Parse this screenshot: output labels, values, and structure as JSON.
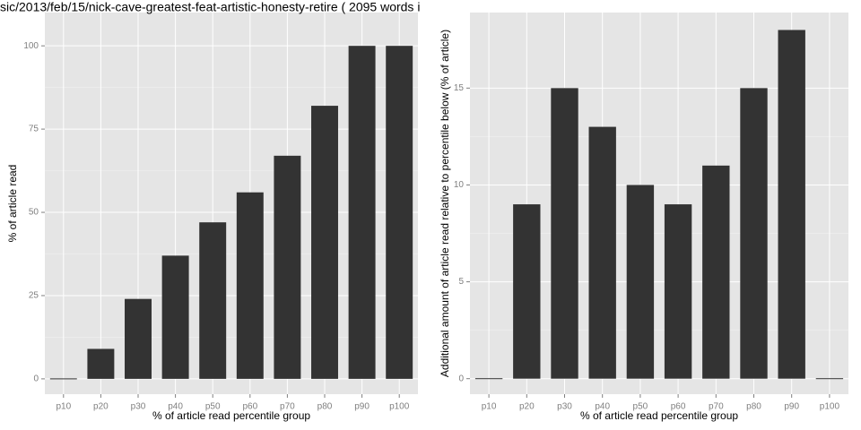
{
  "chart_data": [
    {
      "type": "bar",
      "title": "sic/2013/feb/15/nick-cave-greatest-feat-artistic-honesty-retire ( 2095 words i",
      "x_label": "% of article read percentile group",
      "y_label": "% of article read",
      "categories": [
        "p10",
        "p20",
        "p30",
        "p40",
        "p50",
        "p60",
        "p70",
        "p80",
        "p90",
        "p100"
      ],
      "values": [
        0,
        9,
        24,
        37,
        47,
        56,
        67,
        82,
        100,
        100
      ],
      "color": "#333333",
      "ylim": [
        -4.6,
        110
      ],
      "yticks": [
        0,
        25,
        50,
        75,
        100
      ],
      "grid": true
    },
    {
      "type": "bar",
      "x_label": "% of article read percentile group",
      "y_label": "Additional amount of article read relative to percentile below (% of article)",
      "categories": [
        "p10",
        "p20",
        "p30",
        "p40",
        "p50",
        "p60",
        "p70",
        "p80",
        "p90",
        "p100"
      ],
      "values": [
        0,
        9,
        15,
        13,
        10,
        9,
        11,
        15,
        18,
        0
      ],
      "color": "#333333",
      "ylim": [
        -0.8,
        18.9
      ],
      "yticks": [
        0,
        5,
        10,
        15
      ],
      "grid": true
    }
  ]
}
